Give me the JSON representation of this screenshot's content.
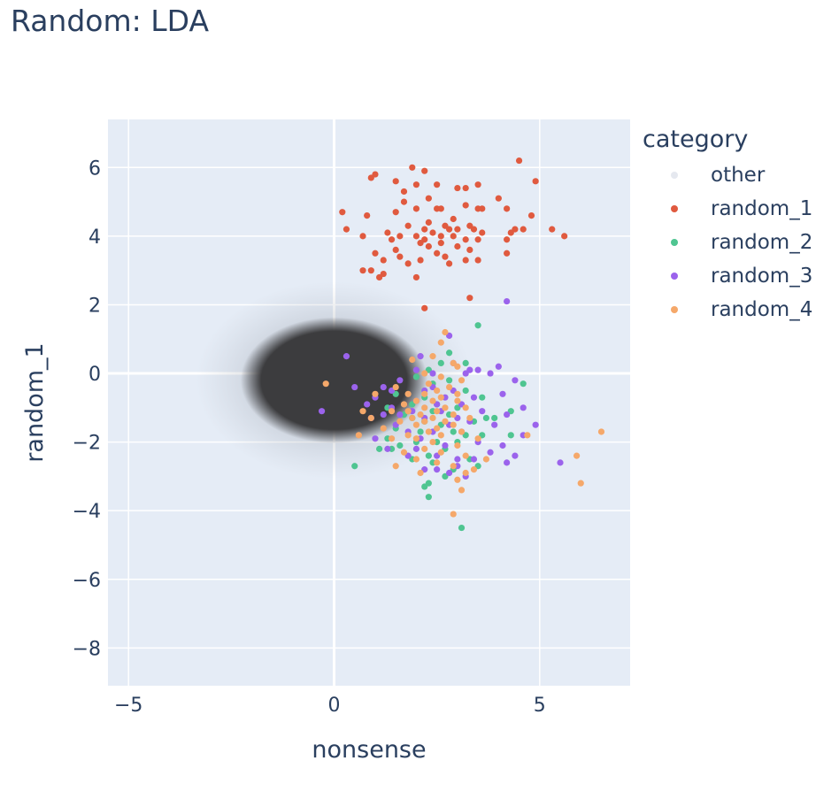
{
  "chart_data": {
    "type": "scatter",
    "title": "Random: LDA",
    "xlabel": "nonsense",
    "ylabel": "random_1",
    "xlim": [
      -5.5,
      7.2
    ],
    "ylim": [
      -9.1,
      7.4
    ],
    "xticks": [
      -5,
      0,
      5
    ],
    "xtick_labels": [
      "−5",
      "0",
      "5"
    ],
    "yticks": [
      6,
      4,
      2,
      0,
      -2,
      -4,
      -6,
      -8
    ],
    "ytick_labels": [
      "6",
      "4",
      "2",
      "0",
      "−2",
      "−4",
      "−6",
      "−8"
    ],
    "grid": true,
    "legend_title": "category",
    "legend_position": "right",
    "series": [
      {
        "name": "other",
        "color": "#e5e8ef",
        "cloud": {
          "center": [
            0.0,
            -0.2
          ],
          "core_sd": [
            1.3,
            1.05
          ],
          "spread_sd": [
            2.1,
            1.8
          ]
        }
      },
      {
        "name": "random_1",
        "color": "#e05a3f",
        "points": [
          [
            4.5,
            6.2
          ],
          [
            1.9,
            6.0
          ],
          [
            2.2,
            5.9
          ],
          [
            1.0,
            5.8
          ],
          [
            0.9,
            5.7
          ],
          [
            4.9,
            5.6
          ],
          [
            1.5,
            5.6
          ],
          [
            2.0,
            5.5
          ],
          [
            2.5,
            5.5
          ],
          [
            3.2,
            5.4
          ],
          [
            3.0,
            5.4
          ],
          [
            3.5,
            5.5
          ],
          [
            1.7,
            5.3
          ],
          [
            2.3,
            5.1
          ],
          [
            4.0,
            5.1
          ],
          [
            1.7,
            5.0
          ],
          [
            3.2,
            4.9
          ],
          [
            2.5,
            4.8
          ],
          [
            3.5,
            4.8
          ],
          [
            2.0,
            4.8
          ],
          [
            2.6,
            4.8
          ],
          [
            3.6,
            4.8
          ],
          [
            0.2,
            4.7
          ],
          [
            4.2,
            4.8
          ],
          [
            1.5,
            4.7
          ],
          [
            4.8,
            4.6
          ],
          [
            0.8,
            4.6
          ],
          [
            2.9,
            4.5
          ],
          [
            2.3,
            4.4
          ],
          [
            2.7,
            4.3
          ],
          [
            3.3,
            4.3
          ],
          [
            1.8,
            4.3
          ],
          [
            0.3,
            4.2
          ],
          [
            4.4,
            4.2
          ],
          [
            3.4,
            4.2
          ],
          [
            2.8,
            4.2
          ],
          [
            3.0,
            4.2
          ],
          [
            2.2,
            4.2
          ],
          [
            4.6,
            4.2
          ],
          [
            1.3,
            4.1
          ],
          [
            2.4,
            4.1
          ],
          [
            3.6,
            4.1
          ],
          [
            4.3,
            4.1
          ],
          [
            1.6,
            4.0
          ],
          [
            2.0,
            4.0
          ],
          [
            5.3,
            4.2
          ],
          [
            0.7,
            4.0
          ],
          [
            2.6,
            4.0
          ],
          [
            2.9,
            4.0
          ],
          [
            1.4,
            3.9
          ],
          [
            2.2,
            3.9
          ],
          [
            5.6,
            4.0
          ],
          [
            3.2,
            3.9
          ],
          [
            3.5,
            3.9
          ],
          [
            4.2,
            3.9
          ],
          [
            2.1,
            3.8
          ],
          [
            2.6,
            3.8
          ],
          [
            3.0,
            3.7
          ],
          [
            1.5,
            3.6
          ],
          [
            2.3,
            3.7
          ],
          [
            3.3,
            3.6
          ],
          [
            2.5,
            3.5
          ],
          [
            1.0,
            3.5
          ],
          [
            1.6,
            3.4
          ],
          [
            2.7,
            3.4
          ],
          [
            2.1,
            3.3
          ],
          [
            2.8,
            3.2
          ],
          [
            3.2,
            3.3
          ],
          [
            4.2,
            3.5
          ],
          [
            1.8,
            3.2
          ],
          [
            3.5,
            3.3
          ],
          [
            1.2,
            3.3
          ],
          [
            0.7,
            3.0
          ],
          [
            0.9,
            3.0
          ],
          [
            1.2,
            2.9
          ],
          [
            2.0,
            2.8
          ],
          [
            1.1,
            2.8
          ],
          [
            3.3,
            2.2
          ],
          [
            2.2,
            1.9
          ]
        ]
      },
      {
        "name": "random_2",
        "color": "#4fc591",
        "points": [
          [
            3.5,
            1.4
          ],
          [
            2.8,
            0.6
          ],
          [
            3.2,
            0.3
          ],
          [
            2.6,
            0.3
          ],
          [
            2.3,
            0.1
          ],
          [
            2.0,
            -0.1
          ],
          [
            2.8,
            -0.2
          ],
          [
            2.4,
            -0.3
          ],
          [
            4.6,
            -0.3
          ],
          [
            3.2,
            -0.5
          ],
          [
            1.5,
            -0.6
          ],
          [
            2.2,
            -0.7
          ],
          [
            3.6,
            -0.7
          ],
          [
            1.9,
            -0.9
          ],
          [
            2.5,
            -0.9
          ],
          [
            1.3,
            -1.0
          ],
          [
            3.0,
            -1.0
          ],
          [
            2.4,
            -1.1
          ],
          [
            4.3,
            -1.1
          ],
          [
            1.7,
            -1.2
          ],
          [
            2.8,
            -1.2
          ],
          [
            1.9,
            -1.3
          ],
          [
            2.2,
            -1.4
          ],
          [
            3.4,
            -1.4
          ],
          [
            2.6,
            -1.5
          ],
          [
            3.7,
            -1.3
          ],
          [
            3.9,
            -1.3
          ],
          [
            1.5,
            -1.6
          ],
          [
            2.1,
            -1.7
          ],
          [
            2.9,
            -1.7
          ],
          [
            3.2,
            -1.8
          ],
          [
            1.3,
            -1.9
          ],
          [
            2.0,
            -2.0
          ],
          [
            2.5,
            -2.0
          ],
          [
            3.0,
            -2.0
          ],
          [
            3.6,
            -1.8
          ],
          [
            4.3,
            -1.8
          ],
          [
            1.6,
            -2.1
          ],
          [
            2.7,
            -2.2
          ],
          [
            1.1,
            -2.2
          ],
          [
            1.4,
            -2.2
          ],
          [
            2.3,
            -2.4
          ],
          [
            3.3,
            -2.5
          ],
          [
            1.9,
            -2.5
          ],
          [
            2.4,
            -2.6
          ],
          [
            0.5,
            -2.7
          ],
          [
            3.5,
            -2.7
          ],
          [
            2.9,
            -2.8
          ],
          [
            2.7,
            -3.0
          ],
          [
            2.3,
            -3.2
          ],
          [
            2.2,
            -3.3
          ],
          [
            2.3,
            -3.6
          ],
          [
            3.1,
            -4.5
          ]
        ]
      },
      {
        "name": "random_3",
        "color": "#9b63ec",
        "points": [
          [
            4.2,
            2.1
          ],
          [
            2.8,
            1.1
          ],
          [
            2.1,
            0.5
          ],
          [
            0.3,
            0.5
          ],
          [
            2.9,
            0.3
          ],
          [
            2.4,
            0.0
          ],
          [
            3.2,
            0.0
          ],
          [
            4.0,
            0.2
          ],
          [
            3.3,
            0.1
          ],
          [
            3.5,
            0.1
          ],
          [
            2.0,
            0.1
          ],
          [
            1.6,
            -0.2
          ],
          [
            3.8,
            0.0
          ],
          [
            4.4,
            -0.2
          ],
          [
            2.4,
            -0.4
          ],
          [
            1.2,
            -0.4
          ],
          [
            2.9,
            -0.5
          ],
          [
            1.4,
            -0.5
          ],
          [
            0.5,
            -0.4
          ],
          [
            2.2,
            -0.5
          ],
          [
            4.1,
            -0.6
          ],
          [
            3.4,
            -0.7
          ],
          [
            2.7,
            -0.7
          ],
          [
            1.0,
            -0.7
          ],
          [
            2.0,
            -0.8
          ],
          [
            2.5,
            -0.9
          ],
          [
            0.8,
            -0.9
          ],
          [
            1.4,
            -1.0
          ],
          [
            3.1,
            -0.9
          ],
          [
            1.9,
            -1.1
          ],
          [
            2.6,
            -1.1
          ],
          [
            4.6,
            -1.0
          ],
          [
            1.6,
            -1.2
          ],
          [
            3.6,
            -1.1
          ],
          [
            -0.3,
            -1.1
          ],
          [
            1.2,
            -1.2
          ],
          [
            3.0,
            -1.3
          ],
          [
            2.2,
            -1.3
          ],
          [
            4.2,
            -1.2
          ],
          [
            0.9,
            -1.3
          ],
          [
            3.9,
            -1.5
          ],
          [
            1.5,
            -1.5
          ],
          [
            2.8,
            -1.5
          ],
          [
            3.3,
            -1.4
          ],
          [
            4.9,
            -1.5
          ],
          [
            1.8,
            -1.7
          ],
          [
            2.4,
            -1.7
          ],
          [
            3.1,
            -1.7
          ],
          [
            4.6,
            -1.8
          ],
          [
            2.1,
            -1.9
          ],
          [
            1.0,
            -1.9
          ],
          [
            3.5,
            -2.0
          ],
          [
            2.7,
            -2.1
          ],
          [
            4.1,
            -2.1
          ],
          [
            1.3,
            -2.2
          ],
          [
            2.0,
            -2.2
          ],
          [
            3.8,
            -2.3
          ],
          [
            2.5,
            -2.4
          ],
          [
            3.0,
            -2.5
          ],
          [
            1.8,
            -2.4
          ],
          [
            4.4,
            -2.4
          ],
          [
            3.4,
            -2.5
          ],
          [
            4.2,
            -2.6
          ],
          [
            5.5,
            -2.6
          ],
          [
            2.2,
            -2.8
          ],
          [
            3.0,
            -2.7
          ],
          [
            2.5,
            -2.8
          ],
          [
            2.8,
            -2.9
          ],
          [
            3.2,
            -3.0
          ]
        ]
      },
      {
        "name": "random_4",
        "color": "#f5a86a",
        "points": [
          [
            2.7,
            1.2
          ],
          [
            2.6,
            0.9
          ],
          [
            2.4,
            0.5
          ],
          [
            2.9,
            0.3
          ],
          [
            1.9,
            0.4
          ],
          [
            3.0,
            0.2
          ],
          [
            2.2,
            0.0
          ],
          [
            2.6,
            -0.1
          ],
          [
            3.1,
            -0.2
          ],
          [
            2.3,
            -0.3
          ],
          [
            1.5,
            -0.4
          ],
          [
            -0.2,
            -0.3
          ],
          [
            2.8,
            -0.4
          ],
          [
            1.8,
            -0.6
          ],
          [
            2.5,
            -0.5
          ],
          [
            3.0,
            -0.6
          ],
          [
            2.2,
            -0.6
          ],
          [
            2.6,
            -0.7
          ],
          [
            1.0,
            -0.6
          ],
          [
            2.0,
            -0.8
          ],
          [
            3.0,
            -0.8
          ],
          [
            2.4,
            -0.8
          ],
          [
            1.7,
            -0.9
          ],
          [
            2.7,
            -1.0
          ],
          [
            2.2,
            -1.0
          ],
          [
            3.2,
            -1.0
          ],
          [
            1.8,
            -1.1
          ],
          [
            2.5,
            -1.1
          ],
          [
            0.7,
            -1.1
          ],
          [
            1.4,
            -1.1
          ],
          [
            2.1,
            -1.2
          ],
          [
            2.9,
            -1.2
          ],
          [
            0.9,
            -1.3
          ],
          [
            1.9,
            -1.3
          ],
          [
            2.4,
            -1.3
          ],
          [
            3.3,
            -1.3
          ],
          [
            1.6,
            -1.4
          ],
          [
            2.2,
            -1.4
          ],
          [
            2.7,
            -1.4
          ],
          [
            2.0,
            -1.5
          ],
          [
            2.5,
            -1.6
          ],
          [
            2.9,
            -1.5
          ],
          [
            1.2,
            -1.6
          ],
          [
            2.3,
            -1.7
          ],
          [
            3.1,
            -1.7
          ],
          [
            1.8,
            -1.8
          ],
          [
            2.6,
            -1.8
          ],
          [
            0.6,
            -1.8
          ],
          [
            6.5,
            -1.7
          ],
          [
            2.0,
            -1.9
          ],
          [
            3.5,
            -1.9
          ],
          [
            1.4,
            -1.9
          ],
          [
            2.4,
            -2.0
          ],
          [
            4.7,
            -1.8
          ],
          [
            3.0,
            -2.1
          ],
          [
            2.2,
            -2.2
          ],
          [
            5.9,
            -2.4
          ],
          [
            2.6,
            -2.3
          ],
          [
            1.7,
            -2.3
          ],
          [
            3.2,
            -2.4
          ],
          [
            2.0,
            -2.5
          ],
          [
            3.7,
            -2.5
          ],
          [
            2.5,
            -2.6
          ],
          [
            1.5,
            -2.7
          ],
          [
            2.9,
            -2.7
          ],
          [
            3.4,
            -2.8
          ],
          [
            2.1,
            -2.9
          ],
          [
            3.2,
            -2.9
          ],
          [
            3.0,
            -3.1
          ],
          [
            6.0,
            -3.2
          ],
          [
            3.1,
            -3.4
          ],
          [
            2.9,
            -4.1
          ]
        ]
      }
    ]
  }
}
